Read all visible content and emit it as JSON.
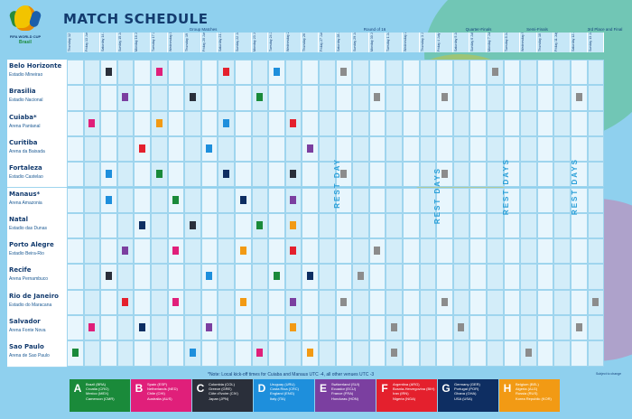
{
  "header": {
    "title": "MATCH SCHEDULE",
    "logo_text": "FIFA WORLD CUP",
    "logo_country": "Brasil",
    "logo_icon": "world-cup-trophy-icon"
  },
  "stages": {
    "group": "Group Matches",
    "r16": "Round of 16",
    "qf": "Quarter-Finals",
    "sf": "Semi-Finals",
    "final": "3rd Place and Final"
  },
  "dates": [
    "Thursday 12 June",
    "Friday 13 June",
    "Saturday 14 June",
    "Sunday 15 June",
    "Monday 16 June",
    "Tuesday 17 June",
    "Wednesday 18 June",
    "Thursday 19 June",
    "Friday 20 June",
    "Saturday 21 June",
    "Sunday 22 June",
    "Monday 23 June",
    "Tuesday 24 June",
    "Wednesday 25 June",
    "Thursday 26 June",
    "Friday 27 June",
    "Saturday 28 June",
    "Sunday 29 June",
    "Monday 30 June",
    "Tuesday 1 July",
    "Wednesday 2 July",
    "Thursday 3 July",
    "Friday 4 July",
    "Saturday 5 July",
    "Sunday 6 July",
    "Monday 7 July",
    "Tuesday 8 July",
    "Wednesday 9 July",
    "Thursday 10 July",
    "Friday 11 July",
    "Saturday 12 July",
    "Sunday 13 July"
  ],
  "venues": [
    {
      "city": "Belo Horizonte",
      "stadium": "Estadio Mineirao"
    },
    {
      "city": "Brasilia",
      "stadium": "Estadio Nacional"
    },
    {
      "city": "Cuiaba*",
      "stadium": "Arena Pantanal"
    },
    {
      "city": "Curitiba",
      "stadium": "Arena da Baixada"
    },
    {
      "city": "Fortaleza",
      "stadium": "Estadio Castelao"
    },
    {
      "city": "Manaus*",
      "stadium": "Arena Amazonia"
    },
    {
      "city": "Natal",
      "stadium": "Estadio das Dunas"
    },
    {
      "city": "Porto Alegre",
      "stadium": "Estadio Beira-Rio"
    },
    {
      "city": "Recife",
      "stadium": "Arena Pernambuco"
    },
    {
      "city": "Rio de Janeiro",
      "stadium": "Estadio do Maracana"
    },
    {
      "city": "Salvador",
      "stadium": "Arena Fonte Nova"
    },
    {
      "city": "Sao Paulo",
      "stadium": "Arena de Sao Paulo"
    }
  ],
  "rest_labels": [
    "REST DAY",
    "REST DAYS",
    "REST DAYS",
    "REST DAYS"
  ],
  "note": "*Note: Local kick-off times for Cuiaba and Manaus UTC -4, all other venues UTC -3",
  "subject_to_change": "Subject to change",
  "groups": [
    {
      "letter": "A",
      "color": "#1a8a3a",
      "teams": [
        "Brazil (BRA)",
        "Croatia (CRO)",
        "Mexico (MEX)",
        "Cameroon (CMR)"
      ]
    },
    {
      "letter": "B",
      "color": "#e01f7a",
      "teams": [
        "Spain (ESP)",
        "Netherlands (NED)",
        "Chile (CHI)",
        "Australia (AUS)"
      ]
    },
    {
      "letter": "C",
      "color": "#2a2f3a",
      "teams": [
        "Colombia (COL)",
        "Greece (GRE)",
        "Côte d'Ivoire (CIV)",
        "Japan (JPN)"
      ]
    },
    {
      "letter": "D",
      "color": "#1e8fdc",
      "teams": [
        "Uruguay (URU)",
        "Costa Rica (CRC)",
        "England (ENG)",
        "Italy (ITA)"
      ]
    },
    {
      "letter": "E",
      "color": "#7b3fa0",
      "teams": [
        "Switzerland (SUI)",
        "Ecuador (ECU)",
        "France (FRA)",
        "Honduras (HON)"
      ]
    },
    {
      "letter": "F",
      "color": "#e4202d",
      "teams": [
        "Argentina (ARG)",
        "Bosnia-Herzegovina (BIH)",
        "Iran (IRN)",
        "Nigeria (NGA)"
      ]
    },
    {
      "letter": "G",
      "color": "#0e2e62",
      "teams": [
        "Germany (GER)",
        "Portugal (POR)",
        "Ghana (GHA)",
        "USA (USA)"
      ]
    },
    {
      "letter": "H",
      "color": "#f29a14",
      "teams": [
        "Belgium (BEL)",
        "Algeria (ALG)",
        "Russia (RUS)",
        "Korea Republic (KOR)"
      ]
    }
  ],
  "knockout_color": "#8c8c8c"
}
